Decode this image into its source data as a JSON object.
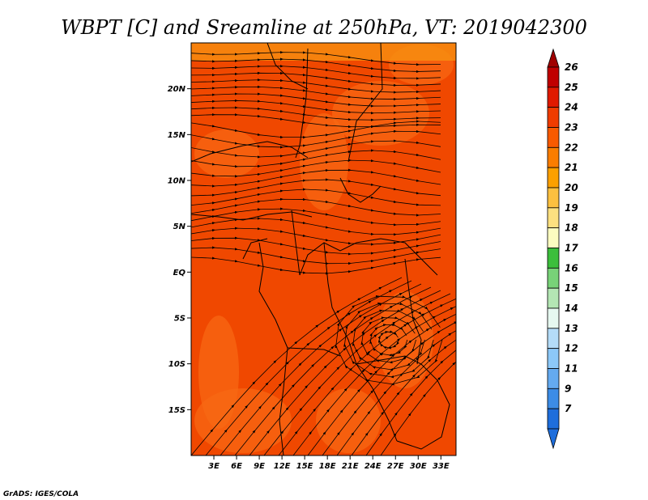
{
  "chart_data": {
    "type": "heatmap",
    "title": "WBPT [C] and Sreamline at 250hPa, VT: 2019042300",
    "variable": "WBPT [C]",
    "level": "250hPa",
    "valid_time": "2019042300",
    "credit": "GrADS: IGES/COLA",
    "lon_range": [
      0,
      35
    ],
    "lat_range": [
      -20,
      25
    ],
    "x_tick_values": [
      3,
      6,
      9,
      12,
      15,
      18,
      21,
      24,
      27,
      30,
      33
    ],
    "x_tick_labels": [
      "3E",
      "6E",
      "9E",
      "12E",
      "15E",
      "18E",
      "21E",
      "24E",
      "27E",
      "30E",
      "33E"
    ],
    "y_tick_values": [
      20,
      15,
      10,
      5,
      0,
      -5,
      -10,
      -15
    ],
    "y_tick_labels": [
      "20N",
      "15N",
      "10N",
      "5N",
      "EQ",
      "5S",
      "10S",
      "15S"
    ],
    "colorbar_labels": [
      "26",
      "25",
      "24",
      "23",
      "22",
      "21",
      "20",
      "19",
      "18",
      "17",
      "16",
      "15",
      "14",
      "13",
      "12",
      "11",
      "9",
      "7"
    ],
    "colorbar_colors": [
      "#c00000",
      "#e01a00",
      "#f03c00",
      "#f85a00",
      "#fa7d00",
      "#fca000",
      "#fcc040",
      "#fce080",
      "#fcfcc0",
      "#3cbe3c",
      "#78d278",
      "#b4e6b4",
      "#e6f8f0",
      "#b4dcf8",
      "#8cc8f8",
      "#64aaf0",
      "#3c8ce6",
      "#1e6edc"
    ],
    "colorbar_top_color": "#a00000",
    "colorbar_bottom_color": "#1e6edc",
    "field_base_color": "#f04800",
    "field_patch_color": "#f86a14"
  }
}
